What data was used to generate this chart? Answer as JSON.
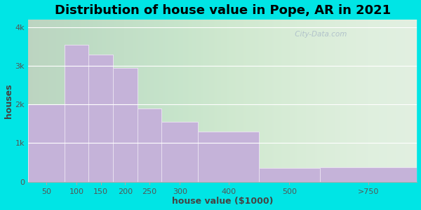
{
  "title": "Distribution of house value in Pope, AR in 2021",
  "xlabel": "house value ($1000)",
  "ylabel": "houses",
  "bin_edges": [
    0,
    75,
    125,
    175,
    225,
    275,
    350,
    475,
    600,
    800
  ],
  "tick_labels": [
    "50",
    "100",
    "150",
    "200",
    "250",
    "300",
    "400",
    "500",
    ">750"
  ],
  "values": [
    2000,
    3550,
    3300,
    2950,
    1900,
    1550,
    1300,
    350,
    370
  ],
  "bar_color": "#c5b3d9",
  "bar_edge_color": "#e8e0f0",
  "background_outer": "#00e5e5",
  "background_inner": "#e0f0e0",
  "yticks": [
    0,
    1000,
    2000,
    3000,
    4000
  ],
  "ytick_labels": [
    "0",
    "1k",
    "2k",
    "3k",
    "4k"
  ],
  "ylim": [
    0,
    4200
  ],
  "title_fontsize": 13,
  "axis_label_fontsize": 9,
  "tick_fontsize": 8,
  "watermark": " City-Data.com"
}
